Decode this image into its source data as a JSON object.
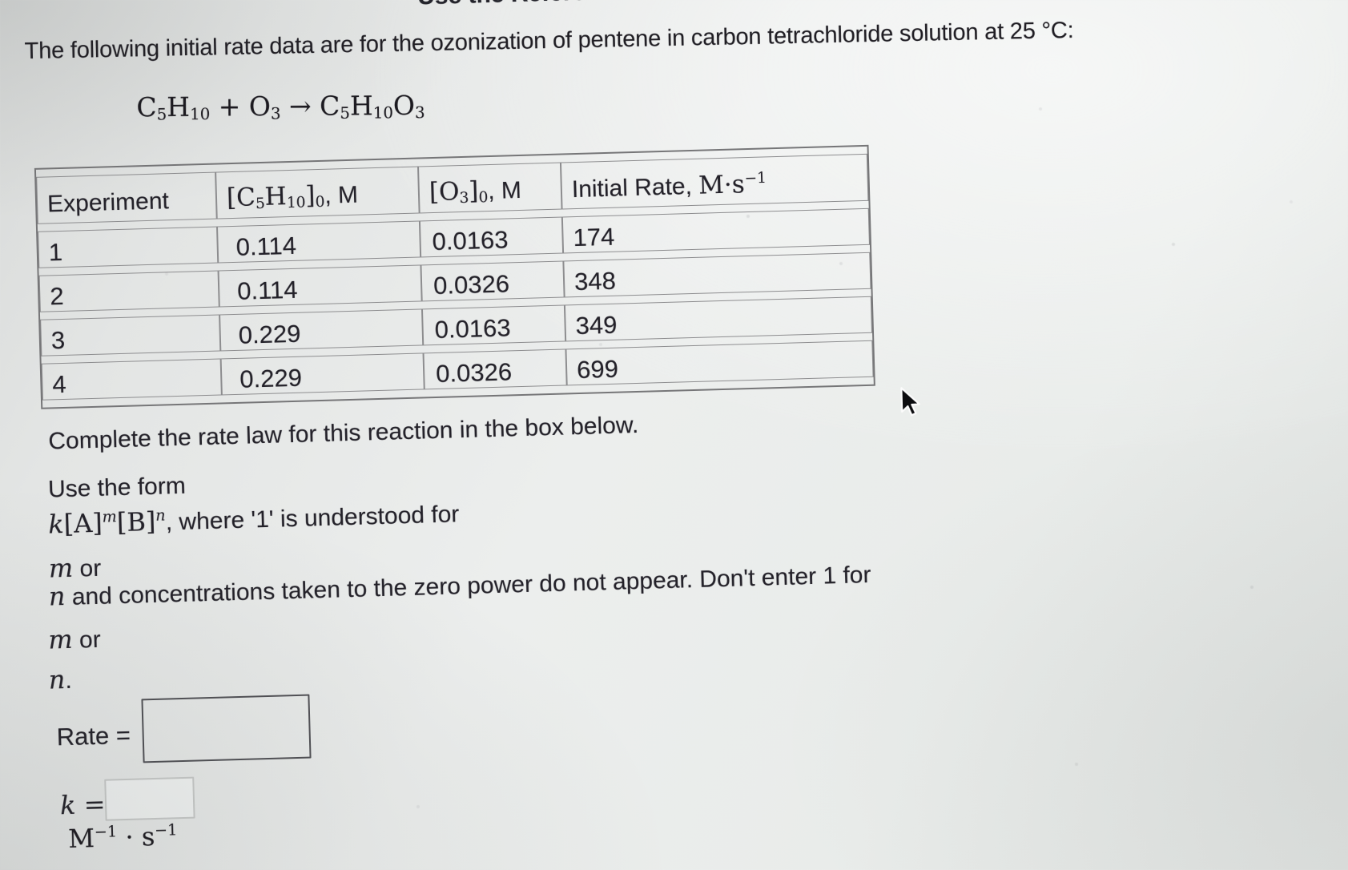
{
  "screen": {
    "clipped_top_text": "Use the Refere"
  },
  "problem": {
    "intro": "The following initial rate data are for the ozonization of pentene in carbon tetrachloride solution at 25 °C:",
    "equation": "C_{5}H_{10} + O_{3} → C_{5}H_{10}O_{3}"
  },
  "data_table": {
    "col_headers": [
      [
        {
          "text": "Experiment"
        }
      ],
      [
        {
          "math": "[C_{5}H_{10}]_{0}"
        },
        {
          "text": ", M"
        }
      ],
      [
        {
          "math": "[O_{3}]_{0}"
        },
        {
          "text": ", M"
        }
      ],
      [
        {
          "text": "Initial Rate, "
        },
        {
          "math": "M·s^{−1}"
        }
      ]
    ],
    "rows": [
      [
        "1",
        "0.114",
        "0.0163",
        "174"
      ],
      [
        "2",
        "0.114",
        "0.0326",
        "348"
      ],
      [
        "3",
        "0.229",
        "0.0163",
        "349"
      ],
      [
        "4",
        "0.229",
        "0.0326",
        "699"
      ]
    ]
  },
  "instructions": {
    "complete": "Complete the rate law for this reaction in the box below.",
    "lines": [
      [
        {
          "text": "Use the form"
        }
      ],
      [
        {
          "math": "*k*[A]^{*m*}[B]^{*n*}"
        },
        {
          "text": ", where '1' is understood for"
        }
      ],
      [
        {
          "math": "*m*"
        },
        {
          "text": " or"
        }
      ],
      [
        {
          "math": "*n*"
        },
        {
          "text": " and concentrations taken to the zero power do not appear. Don't enter 1 for"
        }
      ],
      [
        {
          "math": "*m*"
        },
        {
          "text": " or"
        }
      ],
      [
        {
          "math": "*n*"
        },
        {
          "text": "."
        }
      ]
    ]
  },
  "answer_fields": {
    "rate_label": "Rate =",
    "rate_value": "",
    "k_label": "*k* =",
    "k_value": "",
    "k_units": "M^{−1} · s^{−1}"
  },
  "colors": {
    "page_background": "#e8eae9",
    "text": "#232129",
    "table_border": "#8d8d8f",
    "rate_box_border": "#515156",
    "k_box_border": "#c9cbca"
  }
}
